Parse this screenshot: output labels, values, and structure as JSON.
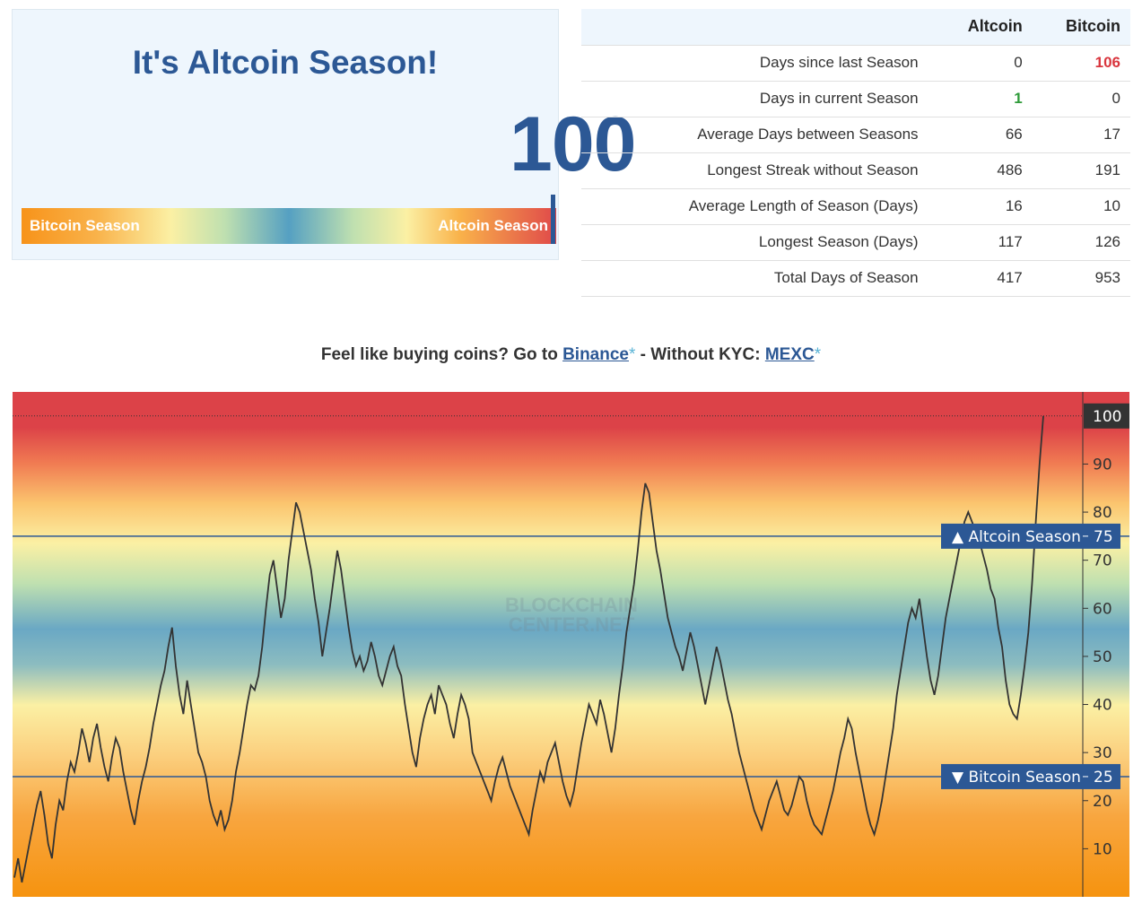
{
  "season_panel": {
    "title": "It's Altcoin Season!",
    "index_value": "100",
    "scale_left_label": "Bitcoin Season",
    "scale_right_label": "Altcoin Season"
  },
  "stats_table": {
    "headers": [
      "",
      "Altcoin",
      "Bitcoin"
    ],
    "rows": [
      {
        "label": "Days since last Season",
        "altcoin": "0",
        "bitcoin": "106"
      },
      {
        "label": "Days in current Season",
        "altcoin": "1",
        "bitcoin": "0"
      },
      {
        "label": "Average Days between Seasons",
        "altcoin": "66",
        "bitcoin": "17"
      },
      {
        "label": "Longest Streak without Season",
        "altcoin": "486",
        "bitcoin": "191"
      },
      {
        "label": "Average Length of Season (Days)",
        "altcoin": "16",
        "bitcoin": "10"
      },
      {
        "label": "Longest Season (Days)",
        "altcoin": "117",
        "bitcoin": "126"
      },
      {
        "label": "Total Days of Season",
        "altcoin": "417",
        "bitcoin": "953"
      }
    ],
    "highlight_colors": {
      "red": "#d9363e",
      "green": "#2f9b3a"
    }
  },
  "promo": {
    "prefix": "Feel like buying coins? Go to ",
    "link1": "Binance",
    "star1": "*",
    "middle": " - Without KYC: ",
    "link2": "MEXC",
    "star2": "*"
  },
  "chart_data": {
    "type": "line",
    "ylim": [
      0,
      105
    ],
    "yticks": [
      10,
      20,
      30,
      40,
      50,
      60,
      70,
      80,
      90
    ],
    "current_value_label": "100",
    "current_value": 100,
    "watermark": [
      "BLOCKCHAIN",
      "CENTER.NET"
    ],
    "threshold_lines": [
      {
        "label": "▲ Altcoin Season",
        "value": 75
      },
      {
        "label": "▼ Bitcoin Season",
        "value": 25
      }
    ],
    "series": [
      {
        "values": [
          4,
          8,
          3,
          7,
          11,
          15,
          19,
          22,
          17,
          11,
          8,
          15,
          20,
          18,
          24,
          28,
          26,
          30,
          35,
          32,
          28,
          33,
          36,
          31,
          27,
          24,
          29,
          33,
          31,
          26,
          22,
          18,
          15,
          20,
          24,
          27,
          31,
          36,
          40,
          44,
          47,
          52,
          56,
          48,
          42,
          38,
          45,
          40,
          35,
          30,
          28,
          25,
          20,
          17,
          15,
          18,
          14,
          16,
          20,
          26,
          30,
          35,
          40,
          44,
          43,
          46,
          52,
          60,
          67,
          70,
          64,
          58,
          62,
          70,
          76,
          82,
          80,
          76,
          72,
          68,
          62,
          57,
          50,
          55,
          60,
          66,
          72,
          68,
          62,
          56,
          51,
          48,
          50,
          47,
          49,
          53,
          50,
          46,
          44,
          47,
          50,
          52,
          48,
          46,
          40,
          35,
          30,
          27,
          33,
          37,
          40,
          42,
          38,
          44,
          42,
          40,
          36,
          33,
          38,
          42,
          40,
          37,
          30,
          28,
          26,
          24,
          22,
          20,
          24,
          27,
          29,
          26,
          23,
          21,
          19,
          17,
          15,
          13,
          18,
          22,
          26,
          24,
          28,
          30,
          32,
          28,
          24,
          21,
          19,
          22,
          27,
          32,
          36,
          40,
          38,
          36,
          41,
          38,
          34,
          30,
          35,
          42,
          48,
          55,
          60,
          65,
          72,
          80,
          86,
          84,
          78,
          72,
          68,
          63,
          58,
          55,
          52,
          50,
          47,
          51,
          55,
          52,
          48,
          44,
          40,
          44,
          48,
          52,
          49,
          45,
          41,
          38,
          34,
          30,
          27,
          24,
          21,
          18,
          16,
          14,
          17,
          20,
          22,
          24,
          21,
          18,
          17,
          19,
          22,
          25,
          24,
          20,
          17,
          15,
          14,
          13,
          16,
          19,
          22,
          26,
          30,
          33,
          37,
          35,
          30,
          26,
          22,
          18,
          15,
          13,
          16,
          20,
          25,
          30,
          35,
          42,
          47,
          52,
          57,
          60,
          58,
          62,
          56,
          50,
          45,
          42,
          46,
          52,
          58,
          62,
          66,
          70,
          74,
          78,
          80,
          78,
          76,
          74,
          71,
          68,
          64,
          62,
          56,
          52,
          45,
          40,
          38,
          37,
          42,
          48,
          55,
          65,
          78,
          90,
          100
        ]
      }
    ],
    "colors": {
      "line": "#333333",
      "threshold": "#2c5895",
      "top_band": "#dc4248",
      "bottom_band": "#f6930f",
      "mid_band": "#6aa8c4",
      "axis_label_bg": "#333333"
    }
  }
}
